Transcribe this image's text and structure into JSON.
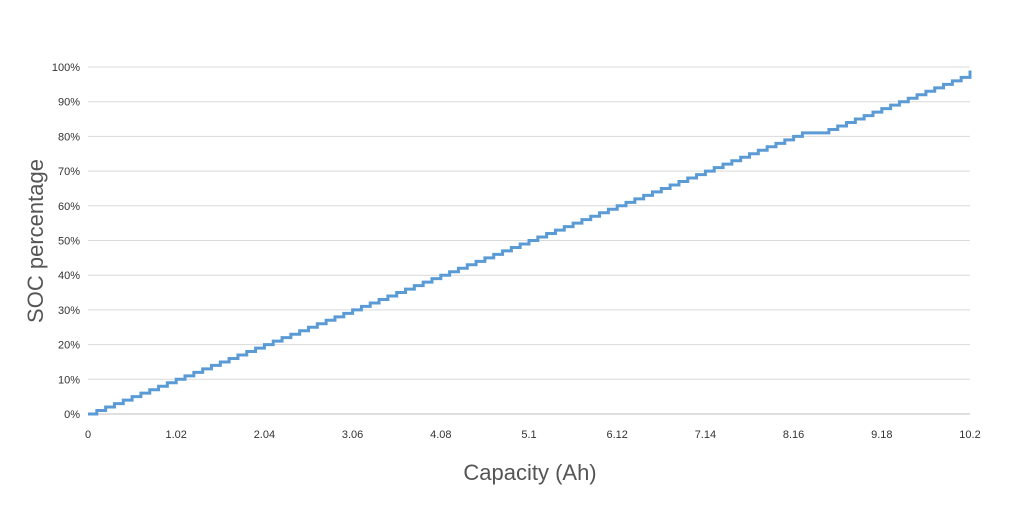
{
  "chart_data": {
    "type": "line",
    "title": "",
    "xlabel": "Capacity (Ah)",
    "ylabel": "SOC percentage",
    "x_tick_labels": [
      "0",
      "1.02",
      "2.04",
      "3.06",
      "4.08",
      "5.1",
      "6.12",
      "7.14",
      "8.16",
      "9.18",
      "10.2"
    ],
    "x_ticks": [
      0,
      1.02,
      2.04,
      3.06,
      4.08,
      5.1,
      6.12,
      7.14,
      8.16,
      9.18,
      10.2
    ],
    "y_tick_labels": [
      "0%",
      "10%",
      "20%",
      "30%",
      "40%",
      "50%",
      "60%",
      "70%",
      "80%",
      "90%",
      "100%"
    ],
    "y_ticks": [
      0,
      10,
      20,
      30,
      40,
      50,
      60,
      70,
      80,
      90,
      100
    ],
    "xlim": [
      0,
      10.2
    ],
    "ylim": [
      0,
      100
    ],
    "grid": true,
    "line_style": "step",
    "series": [
      {
        "color": "#5b9bd5",
        "x": [
          0,
          0.102,
          0.204,
          0.306,
          0.408,
          0.51,
          0.612,
          0.714,
          0.816,
          0.918,
          1.02,
          1.122,
          1.224,
          1.326,
          1.428,
          1.53,
          1.632,
          1.734,
          1.836,
          1.938,
          2.04,
          2.142,
          2.244,
          2.346,
          2.448,
          2.55,
          2.652,
          2.754,
          2.856,
          2.958,
          3.06,
          3.162,
          3.264,
          3.366,
          3.468,
          3.57,
          3.672,
          3.774,
          3.876,
          3.978,
          4.08,
          4.182,
          4.284,
          4.386,
          4.488,
          4.59,
          4.692,
          4.794,
          4.896,
          4.998,
          5.1,
          5.202,
          5.304,
          5.406,
          5.508,
          5.61,
          5.712,
          5.814,
          5.916,
          6.018,
          6.12,
          6.222,
          6.324,
          6.426,
          6.528,
          6.63,
          6.732,
          6.834,
          6.936,
          7.038,
          7.14,
          7.242,
          7.344,
          7.446,
          7.548,
          7.65,
          7.752,
          7.854,
          7.956,
          8.058,
          8.16,
          8.262,
          8.364,
          8.466,
          8.568,
          8.67,
          8.772,
          8.874,
          8.976,
          9.078,
          9.18,
          9.282,
          9.384,
          9.486,
          9.588,
          9.69,
          9.792,
          9.894,
          9.996,
          10.098,
          10.2
        ],
        "y": [
          0,
          1,
          2,
          3,
          4,
          5,
          6,
          7,
          8,
          9,
          10,
          11,
          12,
          13,
          14,
          15,
          16,
          17,
          18,
          19,
          20,
          21,
          22,
          23,
          24,
          25,
          26,
          27,
          28,
          29,
          30,
          31,
          32,
          33,
          34,
          35,
          36,
          37,
          38,
          39,
          40,
          41,
          42,
          43,
          44,
          45,
          46,
          47,
          48,
          49,
          50,
          51,
          52,
          53,
          54,
          55,
          56,
          57,
          58,
          59,
          60,
          61,
          62,
          63,
          64,
          65,
          66,
          67,
          68,
          69,
          70,
          71,
          72,
          73,
          74,
          75,
          76,
          77,
          78,
          79,
          80,
          81,
          81,
          81,
          82,
          83,
          84,
          85,
          86,
          87,
          88,
          89,
          90,
          91,
          92,
          93,
          94,
          95,
          96,
          97,
          99
        ]
      }
    ]
  }
}
